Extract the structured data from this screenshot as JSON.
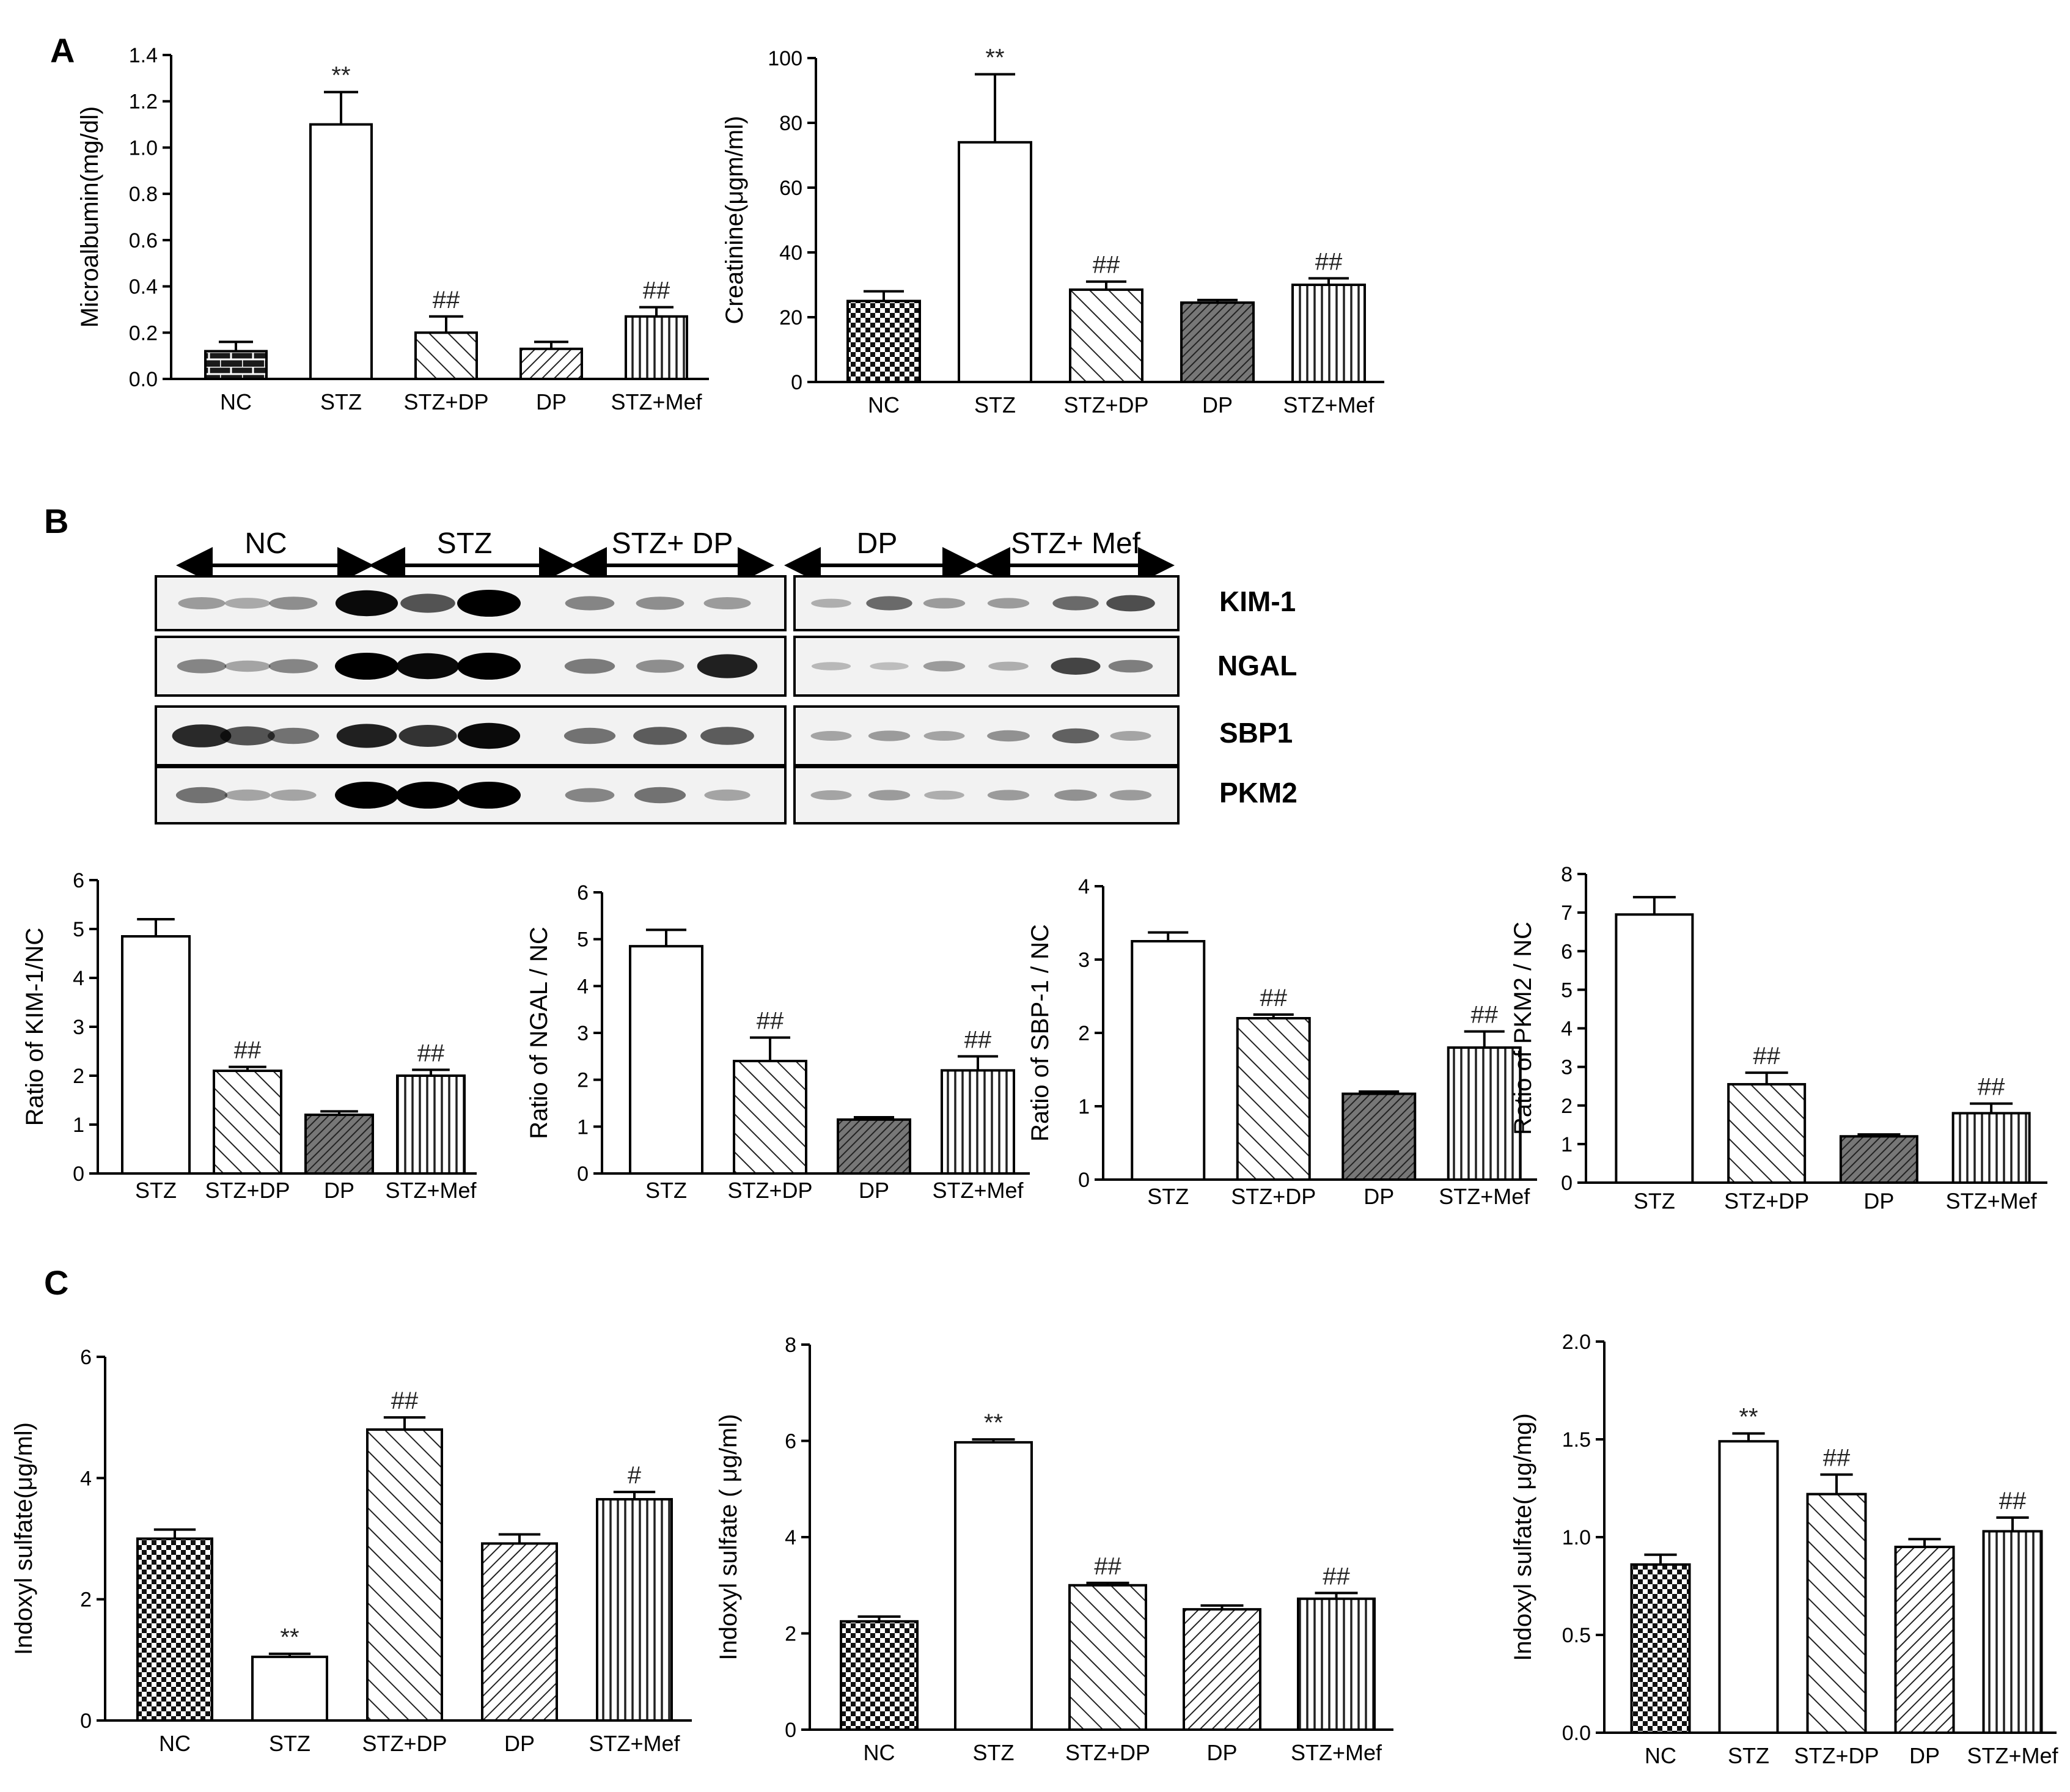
{
  "panels": {
    "A": "A",
    "B": "B",
    "C": "C"
  },
  "blot": {
    "groups": [
      "NC",
      "STZ",
      "STZ+ DP",
      "DP",
      "STZ+ Mef"
    ],
    "proteins": [
      "KIM-1",
      "NGAL",
      "SBP1",
      "PKM2"
    ]
  },
  "chart_data": [
    {
      "id": "a1",
      "type": "bar",
      "categories": [
        "NC",
        "STZ",
        "STZ+DP",
        "DP",
        "STZ+Mef"
      ],
      "values": [
        0.12,
        1.1,
        0.2,
        0.13,
        0.27
      ],
      "errors": [
        0.04,
        0.14,
        0.07,
        0.03,
        0.04
      ],
      "annotations": [
        "",
        "**",
        "##",
        "",
        "##"
      ],
      "patterns": [
        "brick",
        "white",
        "diagback",
        "diag",
        "vert"
      ],
      "ylabel": "Microalbumin(mg/dl)",
      "ylim": [
        0,
        1.4
      ],
      "yticks": [
        "0.0",
        "0.2",
        "0.4",
        "0.6",
        "0.8",
        "1.0",
        "1.2",
        "1.4"
      ]
    },
    {
      "id": "a2",
      "type": "bar",
      "categories": [
        "NC",
        "STZ",
        "STZ+DP",
        "DP",
        "STZ+Mef"
      ],
      "values": [
        25,
        74,
        28.5,
        24.5,
        30
      ],
      "errors": [
        3,
        21,
        2.5,
        0.8,
        2
      ],
      "annotations": [
        "",
        "**",
        "##",
        "",
        "##"
      ],
      "patterns": [
        "check",
        "white",
        "diagback",
        "diagdark",
        "vert"
      ],
      "ylabel": "Creatinine(μgm/ml)",
      "ylim": [
        0,
        100
      ],
      "yticks": [
        "0",
        "20",
        "40",
        "60",
        "80",
        "100"
      ]
    },
    {
      "id": "b1",
      "type": "bar",
      "categories": [
        "STZ",
        "STZ+DP",
        "DP",
        "STZ+Mef"
      ],
      "values": [
        4.85,
        2.1,
        1.2,
        2.0
      ],
      "errors": [
        0.35,
        0.08,
        0.07,
        0.12
      ],
      "annotations": [
        "",
        "##",
        "",
        "##"
      ],
      "patterns": [
        "white",
        "diagback",
        "diagdark",
        "vert"
      ],
      "ylabel": "Ratio of KIM-1/NC",
      "ylim": [
        0,
        6
      ],
      "yticks": [
        "0",
        "1",
        "2",
        "3",
        "4",
        "5",
        "6"
      ]
    },
    {
      "id": "b2",
      "type": "bar",
      "categories": [
        "STZ",
        "STZ+DP",
        "DP",
        "STZ+Mef"
      ],
      "values": [
        4.85,
        2.4,
        1.15,
        2.2
      ],
      "errors": [
        0.35,
        0.5,
        0.05,
        0.3
      ],
      "annotations": [
        "",
        "##",
        "",
        "##"
      ],
      "patterns": [
        "white",
        "diagback",
        "diagdark",
        "vert"
      ],
      "ylabel": "Ratio of NGAL / NC",
      "ylim": [
        0,
        6
      ],
      "yticks": [
        "0",
        "1",
        "2",
        "3",
        "4",
        "5",
        "6"
      ]
    },
    {
      "id": "b3",
      "type": "bar",
      "categories": [
        "STZ",
        "STZ+DP",
        "DP",
        "STZ+Mef"
      ],
      "values": [
        3.25,
        2.2,
        1.17,
        1.8
      ],
      "errors": [
        0.12,
        0.05,
        0.03,
        0.22
      ],
      "annotations": [
        "",
        "##",
        "",
        "##"
      ],
      "patterns": [
        "white",
        "diagback",
        "diagdark",
        "vert"
      ],
      "ylabel": "Ratio of SBP-1 / NC",
      "ylim": [
        0,
        4
      ],
      "yticks": [
        "0",
        "1",
        "2",
        "3",
        "4"
      ]
    },
    {
      "id": "b4",
      "type": "bar",
      "categories": [
        "STZ",
        "STZ+DP",
        "DP",
        "STZ+Mef"
      ],
      "values": [
        6.95,
        2.55,
        1.2,
        1.8
      ],
      "errors": [
        0.45,
        0.3,
        0.05,
        0.25
      ],
      "annotations": [
        "",
        "##",
        "",
        "##"
      ],
      "patterns": [
        "white",
        "diagback",
        "diagdark",
        "vert"
      ],
      "ylabel": "Ratio of PKM2 / NC",
      "ylim": [
        0,
        8
      ],
      "yticks": [
        "0",
        "1",
        "2",
        "3",
        "4",
        "5",
        "6",
        "7",
        "8"
      ]
    },
    {
      "id": "c1",
      "type": "bar",
      "categories": [
        "NC",
        "STZ",
        "STZ+DP",
        "DP",
        "STZ+Mef"
      ],
      "values": [
        3.0,
        1.05,
        4.8,
        2.92,
        3.65
      ],
      "errors": [
        0.15,
        0.05,
        0.2,
        0.15,
        0.12
      ],
      "annotations": [
        "",
        "**",
        "##",
        "",
        "#"
      ],
      "patterns": [
        "check",
        "white",
        "diagback",
        "diag",
        "vert"
      ],
      "ylabel": "Indoxyl sulfate(μg/ml)",
      "ylim": [
        0,
        6
      ],
      "yticks": [
        "0",
        "2",
        "4",
        "6"
      ]
    },
    {
      "id": "c2",
      "type": "bar",
      "categories": [
        "NC",
        "STZ",
        "STZ+DP",
        "DP",
        "STZ+Mef"
      ],
      "values": [
        2.25,
        5.97,
        3.0,
        2.5,
        2.72
      ],
      "errors": [
        0.1,
        0.06,
        0.05,
        0.08,
        0.12
      ],
      "annotations": [
        "",
        "**",
        "##",
        "",
        "##"
      ],
      "patterns": [
        "check",
        "white",
        "diagback",
        "diag",
        "vert"
      ],
      "ylabel": "Indoxyl sulfate ( μg/ml)",
      "ylim": [
        0,
        8
      ],
      "yticks": [
        "0",
        "2",
        "4",
        "6",
        "8"
      ]
    },
    {
      "id": "c3",
      "type": "bar",
      "categories": [
        "NC",
        "STZ",
        "STZ+DP",
        "DP",
        "STZ+Mef"
      ],
      "values": [
        0.86,
        1.49,
        1.22,
        0.95,
        1.03
      ],
      "errors": [
        0.05,
        0.04,
        0.1,
        0.04,
        0.07
      ],
      "annotations": [
        "",
        "**",
        "##",
        "",
        "##"
      ],
      "patterns": [
        "check",
        "white",
        "diagback",
        "diag",
        "vert"
      ],
      "ylabel": "Indoxyl sulfate( μg/mg)",
      "ylim": [
        0,
        2.0
      ],
      "yticks": [
        "0.0",
        "0.5",
        "1.0",
        "1.5",
        "2.0"
      ]
    }
  ]
}
